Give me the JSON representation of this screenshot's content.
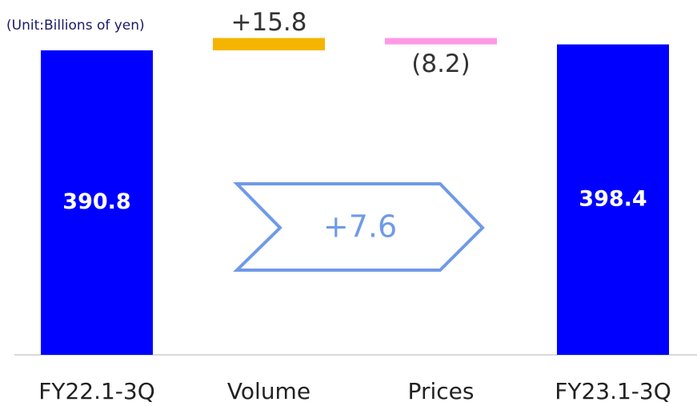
{
  "chart_data": {
    "type": "waterfall",
    "unit_label": "(Unit:Billions of yen)",
    "categories": [
      "FY22.1-3Q",
      "Volume",
      "Prices",
      "FY23.1-3Q"
    ],
    "values": [
      390.8,
      15.8,
      -8.2,
      398.4
    ],
    "value_labels": [
      "390.8",
      "+15.8",
      "(8.2)",
      "398.4"
    ],
    "measures": [
      "absolute",
      "relative",
      "relative",
      "absolute"
    ],
    "colors": [
      "#0000ff",
      "#f5b400",
      "#ff99e6",
      "#0000ff"
    ],
    "annotation": "+7.6",
    "ylim": [
      0,
      420
    ]
  }
}
